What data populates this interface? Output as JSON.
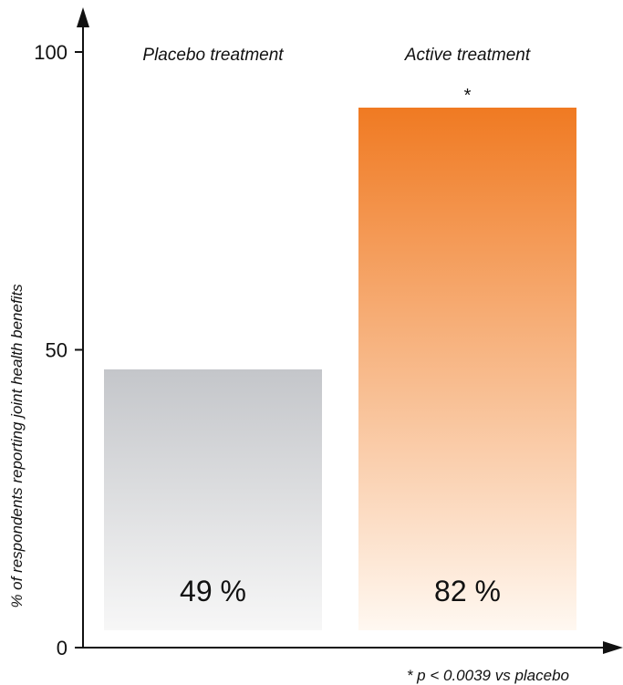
{
  "chart_data": {
    "type": "bar",
    "categories": [
      "Placebo treatment",
      "Active treatment"
    ],
    "values": [
      49,
      82
    ],
    "value_labels": [
      "49 %",
      "82 %"
    ],
    "bar_annotations": [
      "",
      "*"
    ],
    "ylabel": "% of respondents reporting joint health benefits",
    "xlabel": "",
    "ylim": [
      0,
      100
    ],
    "yticks": [
      "0",
      "50",
      "100"
    ],
    "footnote": "* p < 0.0039 vs placebo",
    "grid": false,
    "legend": "none",
    "colors": {
      "placebo_top": "#c4c6ca",
      "placebo_bottom": "#f7f7f7",
      "active_top": "#f07a22",
      "active_bottom": "#fff8f1",
      "axis": "#111111"
    }
  }
}
